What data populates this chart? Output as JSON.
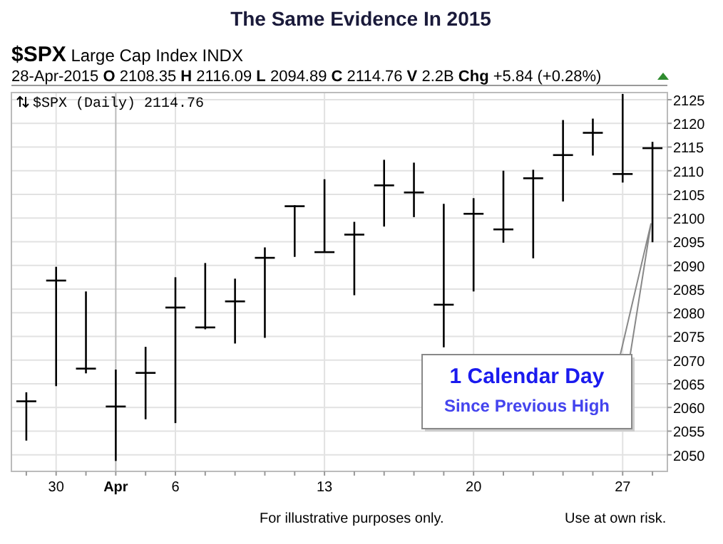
{
  "chart_data": {
    "type": "candlestick",
    "title": "The Same Evidence In 2015",
    "subtitle": "$SPX Large Cap Index INDX",
    "categories": [
      null,
      "30",
      null,
      "Apr",
      null,
      "6",
      null,
      null,
      null,
      null,
      "13",
      null,
      null,
      null,
      null,
      "20",
      null,
      null,
      null,
      null,
      "27",
      null
    ],
    "series": [
      {
        "name": "$SPX (Daily) 2114.76",
        "color": "#000000",
        "ohlc": [
          [
            2061.3,
            2063.2,
            2053.0,
            2061.3
          ],
          [
            2086.8,
            2089.7,
            2064.5,
            2086.8
          ],
          [
            2068.2,
            2084.5,
            2067.2,
            2068.2
          ],
          [
            2060.2,
            2068.0,
            2048.7,
            2060.2
          ],
          [
            2067.3,
            2072.8,
            2057.5,
            2067.3
          ],
          [
            2081.1,
            2087.5,
            2056.7,
            2081.1
          ],
          [
            2076.9,
            2090.5,
            2076.5,
            2076.9
          ],
          [
            2082.4,
            2087.2,
            2073.5,
            2082.4
          ],
          [
            2091.6,
            2093.8,
            2074.7,
            2091.6
          ],
          [
            2102.5,
            2102.7,
            2091.8,
            2102.5
          ],
          [
            2092.8,
            2108.2,
            2092.8,
            2092.8
          ],
          [
            2096.5,
            2099.2,
            2083.7,
            2096.5
          ],
          [
            2106.9,
            2112.3,
            2098.2,
            2106.9
          ],
          [
            2105.4,
            2111.7,
            2100.2,
            2105.4
          ],
          [
            2081.7,
            2103.0,
            2072.7,
            2081.7
          ],
          [
            2100.9,
            2104.2,
            2084.5,
            2100.9
          ],
          [
            2097.6,
            2110.0,
            2094.8,
            2097.6
          ],
          [
            2108.4,
            2110.2,
            2091.5,
            2108.4
          ],
          [
            2113.3,
            2120.7,
            2103.5,
            2113.3
          ],
          [
            2118.0,
            2121.0,
            2113.2,
            2118.0
          ],
          [
            2109.3,
            2126.2,
            2107.5,
            2109.3
          ],
          [
            2114.76,
            2116.09,
            2094.89,
            2114.76
          ]
        ]
      }
    ],
    "ylim": [
      2046.5,
      2126.5
    ],
    "yticks": [
      2050,
      2055,
      2060,
      2065,
      2070,
      2075,
      2080,
      2085,
      2090,
      2095,
      2100,
      2105,
      2110,
      2115,
      2120,
      2125
    ],
    "grid": true,
    "legend": "top left",
    "annotations": [
      "28-Apr-2015 O 2108.35 H 2116.09 L 2094.89 C 2114.76 V 2.2B Chg +5.84 (+0.28%)",
      "1 Calendar Day",
      "Since Previous High",
      "For illustrative purposes only.",
      "Use at own risk."
    ]
  }
}
